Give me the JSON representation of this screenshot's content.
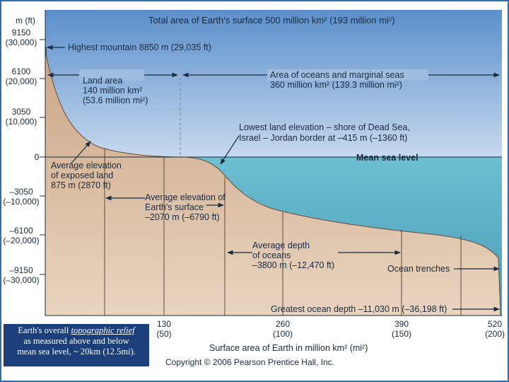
{
  "title": "Total area of Earth's surface 500 million km² (193 million mi²)",
  "y_axis": {
    "unit_label": "m  (ft)",
    "ticks": [
      {
        "m": "9150",
        "ft": "(30,000)"
      },
      {
        "m": "6100",
        "ft": "(20,000)"
      },
      {
        "m": "3050",
        "ft": "(10,000)"
      },
      {
        "m": "0",
        "ft": ""
      },
      {
        "m": "–3050",
        "ft": "(–10,000)"
      },
      {
        "m": "–6100",
        "ft": "(–20,000)"
      },
      {
        "m": "–9150",
        "ft": "(–30,000)"
      }
    ]
  },
  "x_axis": {
    "label": "Surface area of Earth in million km² (mi²)",
    "ticks": [
      {
        "km": "130",
        "mi": "(50)"
      },
      {
        "km": "260",
        "mi": "(100)"
      },
      {
        "km": "390",
        "mi": "(150)"
      },
      {
        "km": "520",
        "mi": "(200)"
      }
    ]
  },
  "labels": {
    "highest_mountain": "Highest mountain 8850 m (29,035 ft)",
    "land_area": [
      "Land area",
      "140 million km²",
      "(53.6 million mi²)"
    ],
    "ocean_area": [
      "Area of oceans and marginal seas",
      "360 million km² (139.3 million mi²)"
    ],
    "lowest_land": [
      "Lowest land elevation – shore of Dead Sea,",
      "Israel – Jordan border at –415 m (–1360 ft)"
    ],
    "sea_level": "Mean sea level",
    "avg_land": [
      "Average elevation",
      "of exposed land",
      "875 m (2870 ft)"
    ],
    "avg_surface": [
      "Average elevation of",
      "Earth's surface",
      "–2070 m (–6790 ft)"
    ],
    "avg_depth": [
      "Average depth",
      "of oceans",
      "–3800 m (–12,470 ft)"
    ],
    "trenches": "Ocean trenches",
    "greatest_depth": "Greatest ocean depth –11,030 m (–36,198 ft)"
  },
  "copyright": "Copyright © 2006 Pearson Prentice Hall, Inc.",
  "caption": {
    "pre": "Earth's overall ",
    "emph": "topographic relief",
    "line2": "as measured above and below",
    "line3": "mean sea level, ~ 20km (12.5mi)."
  },
  "colors": {
    "sky_top": "#5b8fcb",
    "sky_bottom": "#c6d9ee",
    "sea": "#5fb0c4",
    "land_top": "#e6cdb4",
    "land_bottom": "#c69b7a",
    "frame": "#2f6fa8",
    "caption_bg": "#1b3f7a"
  }
}
